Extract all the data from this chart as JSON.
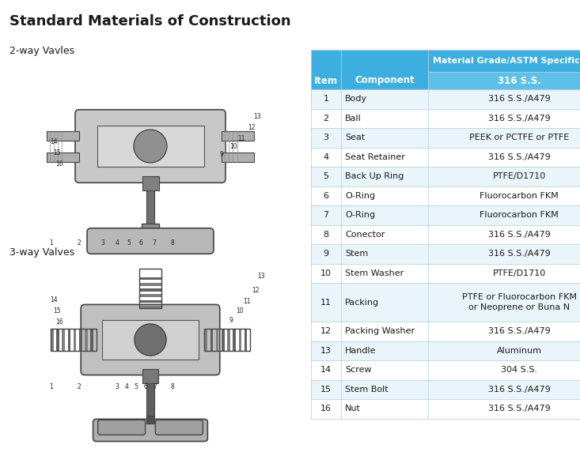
{
  "title": "Standard Materials of Construction",
  "title_fontsize": 13,
  "subtitle_2way": "2-way Vavles",
  "subtitle_3way": "3-way Valves",
  "header_bg1": "#3daee0",
  "header_bg2": "#5cc0e8",
  "header_text_color": "#ffffff",
  "table_rows": [
    [
      "1",
      "Body",
      "316 S.S./A479"
    ],
    [
      "2",
      "Ball",
      "316 S.S./A479"
    ],
    [
      "3",
      "Seat",
      "PEEK or PCTFE or PTFE"
    ],
    [
      "4",
      "Seat Retainer",
      "316 S.S./A479"
    ],
    [
      "5",
      "Back Up Ring",
      "PTFE/D1710"
    ],
    [
      "6",
      "O-Ring",
      "Fluorocarbon FKM"
    ],
    [
      "7",
      "O-Ring",
      "Fluorocarbon FKM"
    ],
    [
      "8",
      "Conector",
      "316 S.S./A479"
    ],
    [
      "9",
      "Stem",
      "316 S.S./A479"
    ],
    [
      "10",
      "Stem Washer",
      "PTFE/D1710"
    ],
    [
      "11",
      "Packing",
      "PTFE or Fluorocarbon FKM\nor Neoprene or Buna N"
    ],
    [
      "12",
      "Packing Washer",
      "316 S.S./A479"
    ],
    [
      "13",
      "Handle",
      "Aluminum"
    ],
    [
      "14",
      "Screw",
      "304 S.S."
    ],
    [
      "15",
      "Stem Bolt",
      "316 S.S./A479"
    ],
    [
      "16",
      "Nut",
      "316 S.S./A479"
    ]
  ],
  "row_bg_even": "#eaf5fb",
  "row_bg_odd": "#ffffff",
  "border_color": "#aaccdd",
  "text_color_dark": "#1a1a1a",
  "bg_color": "#ffffff"
}
